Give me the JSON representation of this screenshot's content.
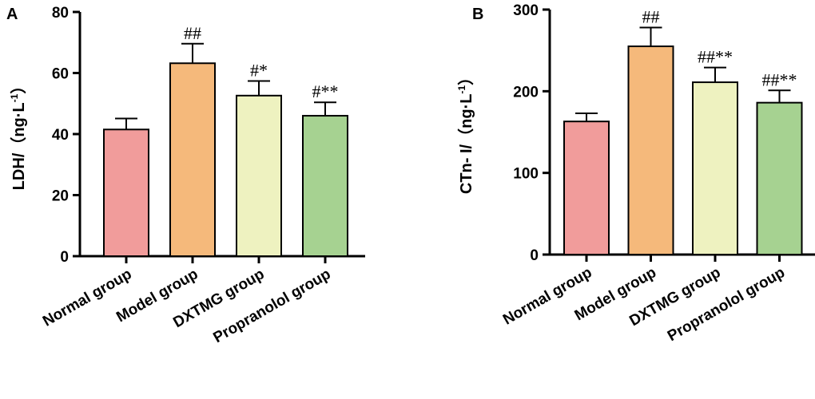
{
  "chart_data": [
    {
      "panel": "A",
      "type": "bar",
      "title": "",
      "xlabel": "",
      "ylabel": {
        "main": "LDH/（ng·L",
        "sup": "-1",
        "close": "）"
      },
      "ylim": [
        0,
        80
      ],
      "yticks": [
        0,
        20,
        40,
        60,
        80
      ],
      "grid": false,
      "categories": [
        "Normal group",
        "Model group",
        "DXTMG group",
        "Propranolol group"
      ],
      "values": [
        41.5,
        63.2,
        52.6,
        46.0
      ],
      "errors": [
        3.6,
        6.4,
        4.8,
        4.4
      ],
      "annotations": [
        "",
        "##",
        "#*",
        "#**"
      ],
      "colors": [
        "#F19C9B",
        "#F5B97B",
        "#EEF2C0",
        "#A6D291"
      ]
    },
    {
      "panel": "B",
      "type": "bar",
      "title": "",
      "xlabel": "",
      "ylabel": {
        "main": "CTn- I/（ng·L",
        "sup": "-1",
        "close": "）"
      },
      "ylim": [
        0,
        300
      ],
      "yticks": [
        0,
        100,
        200,
        300
      ],
      "grid": false,
      "categories": [
        "Normal group",
        "Model group",
        "DXTMG group",
        "Propranolol group"
      ],
      "values": [
        163,
        255,
        211,
        186
      ],
      "errors": [
        10,
        23,
        18,
        15
      ],
      "annotations": [
        "",
        "##",
        "##**",
        "##**"
      ],
      "colors": [
        "#F19C9B",
        "#F5B97B",
        "#EEF2C0",
        "#A6D291"
      ]
    }
  ]
}
